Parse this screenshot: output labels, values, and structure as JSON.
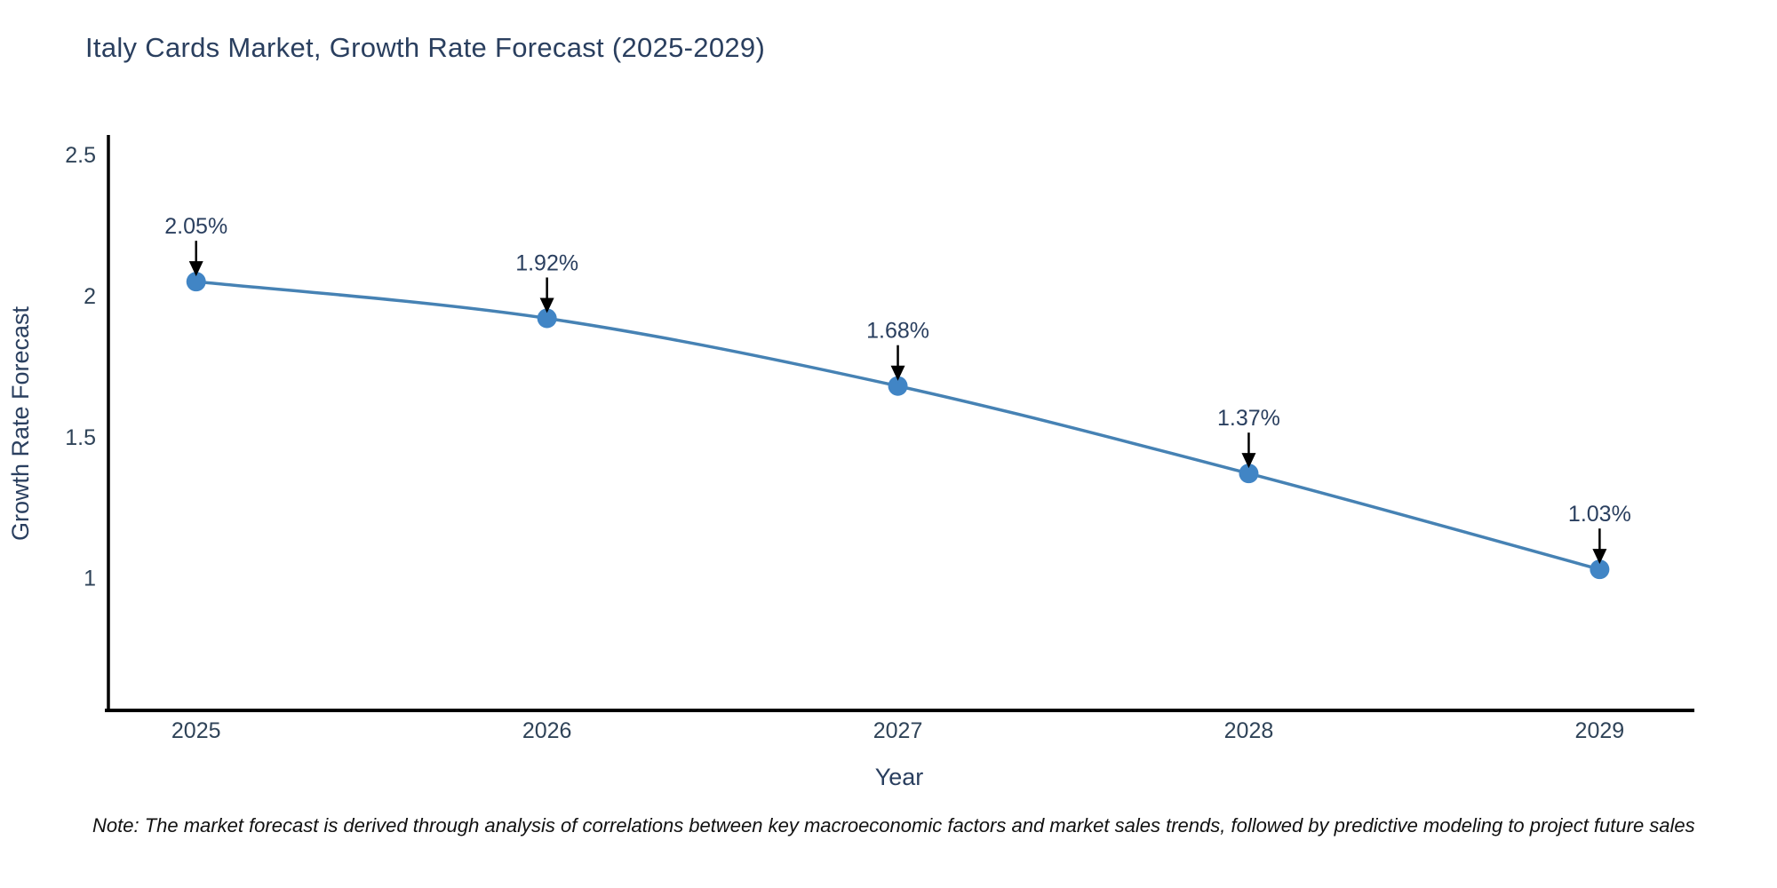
{
  "title": "Italy Cards Market, Growth Rate Forecast (2025-2029)",
  "note": "Note: The market forecast is derived through analysis of correlations between key macroeconomic factors and market sales trends, followed by predictive modeling to project future sales",
  "chart_data": {
    "type": "line",
    "x": [
      2025,
      2026,
      2027,
      2028,
      2029
    ],
    "values": [
      2.05,
      1.92,
      1.68,
      1.37,
      1.03
    ],
    "point_labels": [
      "2.05%",
      "1.92%",
      "1.68%",
      "1.37%",
      "1.03%"
    ],
    "title": "Italy Cards Market, Growth Rate Forecast (2025-2029)",
    "xlabel": "Year",
    "ylabel": "Growth Rate Forecast",
    "yticks": [
      1,
      1.5,
      2,
      2.5
    ],
    "ytick_labels": [
      "1",
      "1.5",
      "2",
      "2.5"
    ],
    "xtick_labels": [
      "2025",
      "2026",
      "2027",
      "2028",
      "2029"
    ],
    "ylim": [
      0.53,
      2.57
    ],
    "xlim": [
      2024.75,
      2029.27
    ],
    "grid": false,
    "legend": "none",
    "colors": {
      "line": "#4682b4",
      "marker": "#4185c5",
      "axis": "#000000",
      "annotation_arrow": "#000000",
      "title_text": "#2a3f5f"
    }
  }
}
